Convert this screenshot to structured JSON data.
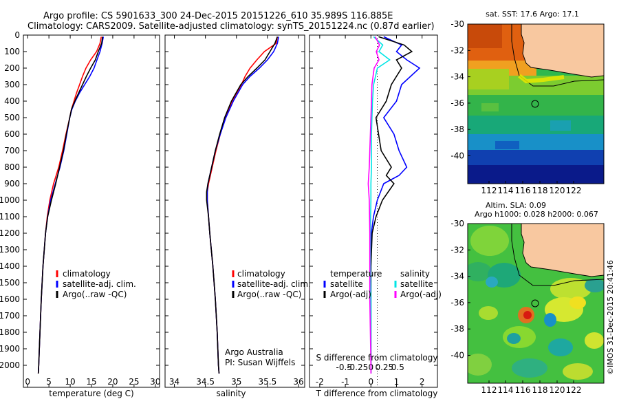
{
  "header": {
    "line1": "Argo profile: CS 5901633_300 24-Dec-2015 20151226_610 35.989S 116.885E",
    "line2": "Climatology: CARS2009. Satellite-adjusted climatology: synTS_20151224.nc (0.87d earlier)"
  },
  "colors": {
    "climatology": "#ff0000",
    "satellite": "#0000ff",
    "argo": "#000000",
    "salinity_satellite": "#00e5e5",
    "salinity_argo": "#ff00ff",
    "land": "#f8c8a0"
  },
  "chart_data": [
    {
      "id": "temperature",
      "type": "line",
      "xlabel": "temperature (deg C)",
      "ylabel": "",
      "xlim": [
        -1,
        31
      ],
      "ylim": [
        2050,
        0
      ],
      "xticks": [
        0,
        5,
        10,
        15,
        20,
        25,
        30
      ],
      "xtick_labels": [
        "0",
        "5",
        "10",
        "15",
        "20",
        "25",
        "30"
      ],
      "yticks": [
        0,
        100,
        200,
        300,
        400,
        500,
        600,
        700,
        800,
        900,
        1000,
        1100,
        1200,
        1300,
        1400,
        1500,
        1600,
        1700,
        1800,
        1900,
        2000
      ],
      "ytick_labels": [
        "0",
        "100",
        "200",
        "300",
        "400",
        "500",
        "600",
        "700",
        "800",
        "900",
        "1000",
        "1100",
        "1200",
        "1300",
        "1400",
        "1500",
        "1600",
        "1700",
        "1800",
        "1900",
        "2000"
      ],
      "legend": [
        "climatology",
        "satellite-adj. clim.",
        "Argo(..raw -QC)"
      ],
      "series": [
        {
          "name": "climatology",
          "color": "#ff0000",
          "depth": [
            10,
            50,
            100,
            150,
            200,
            250,
            300,
            350,
            400,
            450,
            500,
            600,
            700,
            800,
            900,
            1000,
            1100,
            1200,
            1400,
            1600,
            1800,
            2000,
            2050
          ],
          "values": [
            17.3,
            17.0,
            16.2,
            14.8,
            13.7,
            12.9,
            12.2,
            11.5,
            10.9,
            10.3,
            9.9,
            9.0,
            8.2,
            7.3,
            6.1,
            5.2,
            4.6,
            4.2,
            3.6,
            3.2,
            2.9,
            2.6,
            2.5
          ]
        },
        {
          "name": "satellite-adj. clim.",
          "color": "#0000ff",
          "depth": [
            10,
            50,
            100,
            150,
            200,
            250,
            300,
            350,
            400,
            450,
            500,
            600,
            700,
            800,
            900,
            1000,
            1100,
            1200,
            1400,
            1600,
            1800,
            2000,
            2050
          ],
          "values": [
            17.8,
            17.5,
            17.0,
            16.3,
            15.6,
            14.6,
            13.4,
            12.2,
            11.2,
            10.4,
            9.9,
            9.2,
            8.5,
            7.6,
            6.5,
            5.4,
            4.7,
            4.2,
            3.6,
            3.2,
            2.9,
            2.6,
            2.5
          ]
        },
        {
          "name": "Argo(..raw -QC)",
          "color": "#000000",
          "depth": [
            10,
            50,
            100,
            150,
            200,
            250,
            300,
            350,
            400,
            450,
            500,
            600,
            700,
            800,
            900,
            1000,
            1100,
            1200,
            1400,
            1600,
            1800,
            2000,
            2050
          ],
          "values": [
            17.6,
            17.4,
            16.6,
            15.9,
            14.8,
            13.8,
            12.9,
            12.0,
            11.1,
            10.3,
            9.9,
            9.1,
            8.4,
            7.5,
            6.6,
            5.6,
            4.7,
            4.2,
            3.6,
            3.2,
            2.9,
            2.6,
            2.5
          ]
        }
      ]
    },
    {
      "id": "salinity",
      "type": "line",
      "xlabel": "salinity",
      "ylabel": "",
      "xlim": [
        33.85,
        36.1
      ],
      "ylim": [
        2050,
        0
      ],
      "xticks": [
        34,
        34.5,
        35,
        35.5,
        36
      ],
      "xtick_labels": [
        "34",
        "34.5",
        "35",
        "35.5",
        "36"
      ],
      "legend": [
        "climatology",
        "satellite-adj. clim.",
        "Argo(..raw -QC)"
      ],
      "annotation": [
        "Argo Australia",
        "PI: Susan Wijffels"
      ],
      "series": [
        {
          "name": "climatology",
          "color": "#ff0000",
          "depth": [
            10,
            50,
            100,
            150,
            200,
            250,
            300,
            400,
            500,
            600,
            700,
            800,
            900,
            950,
            1000,
            1100,
            1200,
            1400,
            1600,
            1800,
            2000,
            2050
          ],
          "values": [
            35.66,
            35.64,
            35.45,
            35.33,
            35.22,
            35.14,
            35.08,
            34.93,
            34.82,
            34.74,
            34.67,
            34.61,
            34.55,
            34.53,
            34.53,
            34.55,
            34.57,
            34.62,
            34.66,
            34.69,
            34.71,
            34.72
          ]
        },
        {
          "name": "satellite-adj. clim.",
          "color": "#0000ff",
          "depth": [
            10,
            50,
            100,
            150,
            200,
            250,
            300,
            400,
            500,
            600,
            700,
            800,
            900,
            950,
            1000,
            1100,
            1200,
            1400,
            1600,
            1800,
            2000,
            2050
          ],
          "values": [
            35.68,
            35.66,
            35.6,
            35.5,
            35.37,
            35.22,
            35.1,
            34.95,
            34.83,
            34.74,
            34.66,
            34.6,
            34.54,
            34.53,
            34.53,
            34.55,
            34.57,
            34.62,
            34.66,
            34.69,
            34.71,
            34.72
          ]
        },
        {
          "name": "Argo(..raw -QC)",
          "color": "#000000",
          "depth": [
            10,
            50,
            100,
            150,
            200,
            250,
            300,
            400,
            500,
            600,
            700,
            800,
            900,
            950,
            1000,
            1100,
            1200,
            1400,
            1600,
            1800,
            2000,
            2050
          ],
          "values": [
            35.66,
            35.62,
            35.54,
            35.46,
            35.33,
            35.19,
            35.07,
            34.92,
            34.81,
            34.73,
            34.66,
            34.6,
            34.54,
            34.52,
            34.52,
            34.55,
            34.57,
            34.62,
            34.66,
            34.69,
            34.71,
            34.72
          ]
        }
      ]
    },
    {
      "id": "difference",
      "type": "line",
      "xlabel": "T difference from climatology",
      "top_label": "S difference from climatology",
      "xlim": [
        -2.4,
        2.6
      ],
      "ylim": [
        2050,
        0
      ],
      "xticks": [
        -2,
        -1,
        0,
        1,
        2
      ],
      "xtick_labels": [
        "-2",
        "-1",
        "0",
        "1",
        "2"
      ],
      "sticks": [
        -0.5,
        -0.25,
        0,
        0.25,
        0.5
      ],
      "stick_labels": [
        "-0.5",
        "-0.25",
        "0",
        "0.25",
        "0.5"
      ],
      "legend_t": [
        "temperature",
        "satellite",
        "Argo(-adj)"
      ],
      "legend_s": [
        "salinity",
        "satellite",
        "Argo(-adj)"
      ],
      "series": [
        {
          "name": "T satellite",
          "color": "#0000ff",
          "depth": [
            10,
            60,
            100,
            150,
            200,
            300,
            400,
            500,
            600,
            700,
            800,
            850,
            900,
            1000,
            1100,
            1200,
            1400,
            1600,
            1800,
            2000,
            2050
          ],
          "values": [
            0.5,
            1.2,
            1.0,
            1.4,
            1.9,
            1.2,
            1.0,
            0.5,
            0.9,
            1.1,
            1.4,
            1.1,
            0.5,
            0.25,
            0.1,
            0.02,
            0.0,
            0.0,
            0.0,
            0.0,
            0.0
          ]
        },
        {
          "name": "T Argo(-adj)",
          "color": "#000000",
          "depth": [
            10,
            60,
            100,
            150,
            200,
            300,
            400,
            500,
            600,
            700,
            800,
            850,
            900,
            1000,
            1100,
            1200,
            1400,
            1600,
            1800,
            2000,
            2050
          ],
          "values": [
            0.3,
            1.3,
            1.6,
            1.0,
            1.2,
            0.8,
            0.6,
            0.2,
            0.3,
            0.4,
            0.8,
            0.6,
            0.9,
            0.45,
            0.2,
            0.05,
            0.0,
            0.0,
            0.0,
            0.0,
            0.0
          ]
        },
        {
          "name": "S satellite",
          "color": "#00e5e5",
          "depth": [
            10,
            60,
            100,
            150,
            200,
            300,
            400,
            500,
            600,
            700,
            800,
            900,
            1000,
            1200,
            1400,
            1600,
            1800,
            2000,
            2050
          ],
          "values": [
            0.05,
            0.22,
            0.15,
            0.35,
            0.12,
            0.05,
            0.03,
            0.02,
            0.01,
            0.01,
            0.01,
            0.0,
            0.0,
            -0.01,
            -0.01,
            0.0,
            0.0,
            0.0,
            0.0
          ]
        },
        {
          "name": "S Argo(-adj)",
          "color": "#ff00ff",
          "depth": [
            10,
            60,
            100,
            150,
            200,
            300,
            400,
            500,
            600,
            700,
            800,
            900,
            1000,
            1200,
            1400,
            1600,
            1800,
            2000,
            2050
          ],
          "values": [
            0.08,
            0.16,
            0.1,
            0.15,
            0.06,
            0.02,
            0.01,
            0.0,
            -0.01,
            -0.02,
            -0.03,
            -0.05,
            -0.03,
            -0.02,
            -0.02,
            -0.02,
            -0.01,
            0.0,
            0.0
          ]
        }
      ]
    }
  ],
  "map_sst": {
    "title": "sat. SST: 17.6  Argo: 17.1",
    "xticks": [
      "112",
      "114",
      "116",
      "118",
      "120",
      "122"
    ],
    "yticks": [
      "-30",
      "-32",
      "-34",
      "-36",
      "-38",
      "-40"
    ]
  },
  "map_sla": {
    "title1": "Altim. SLA: 0.09",
    "title2": "Argo h1000: 0.028 h2000: 0.067",
    "xticks": [
      "112",
      "114",
      "116",
      "118",
      "120",
      "122"
    ],
    "yticks": [
      "-30",
      "-32",
      "-34",
      "-36",
      "-38",
      "-40"
    ]
  },
  "stamp": "©IMOS 31-Dec-2015 20:41:46"
}
